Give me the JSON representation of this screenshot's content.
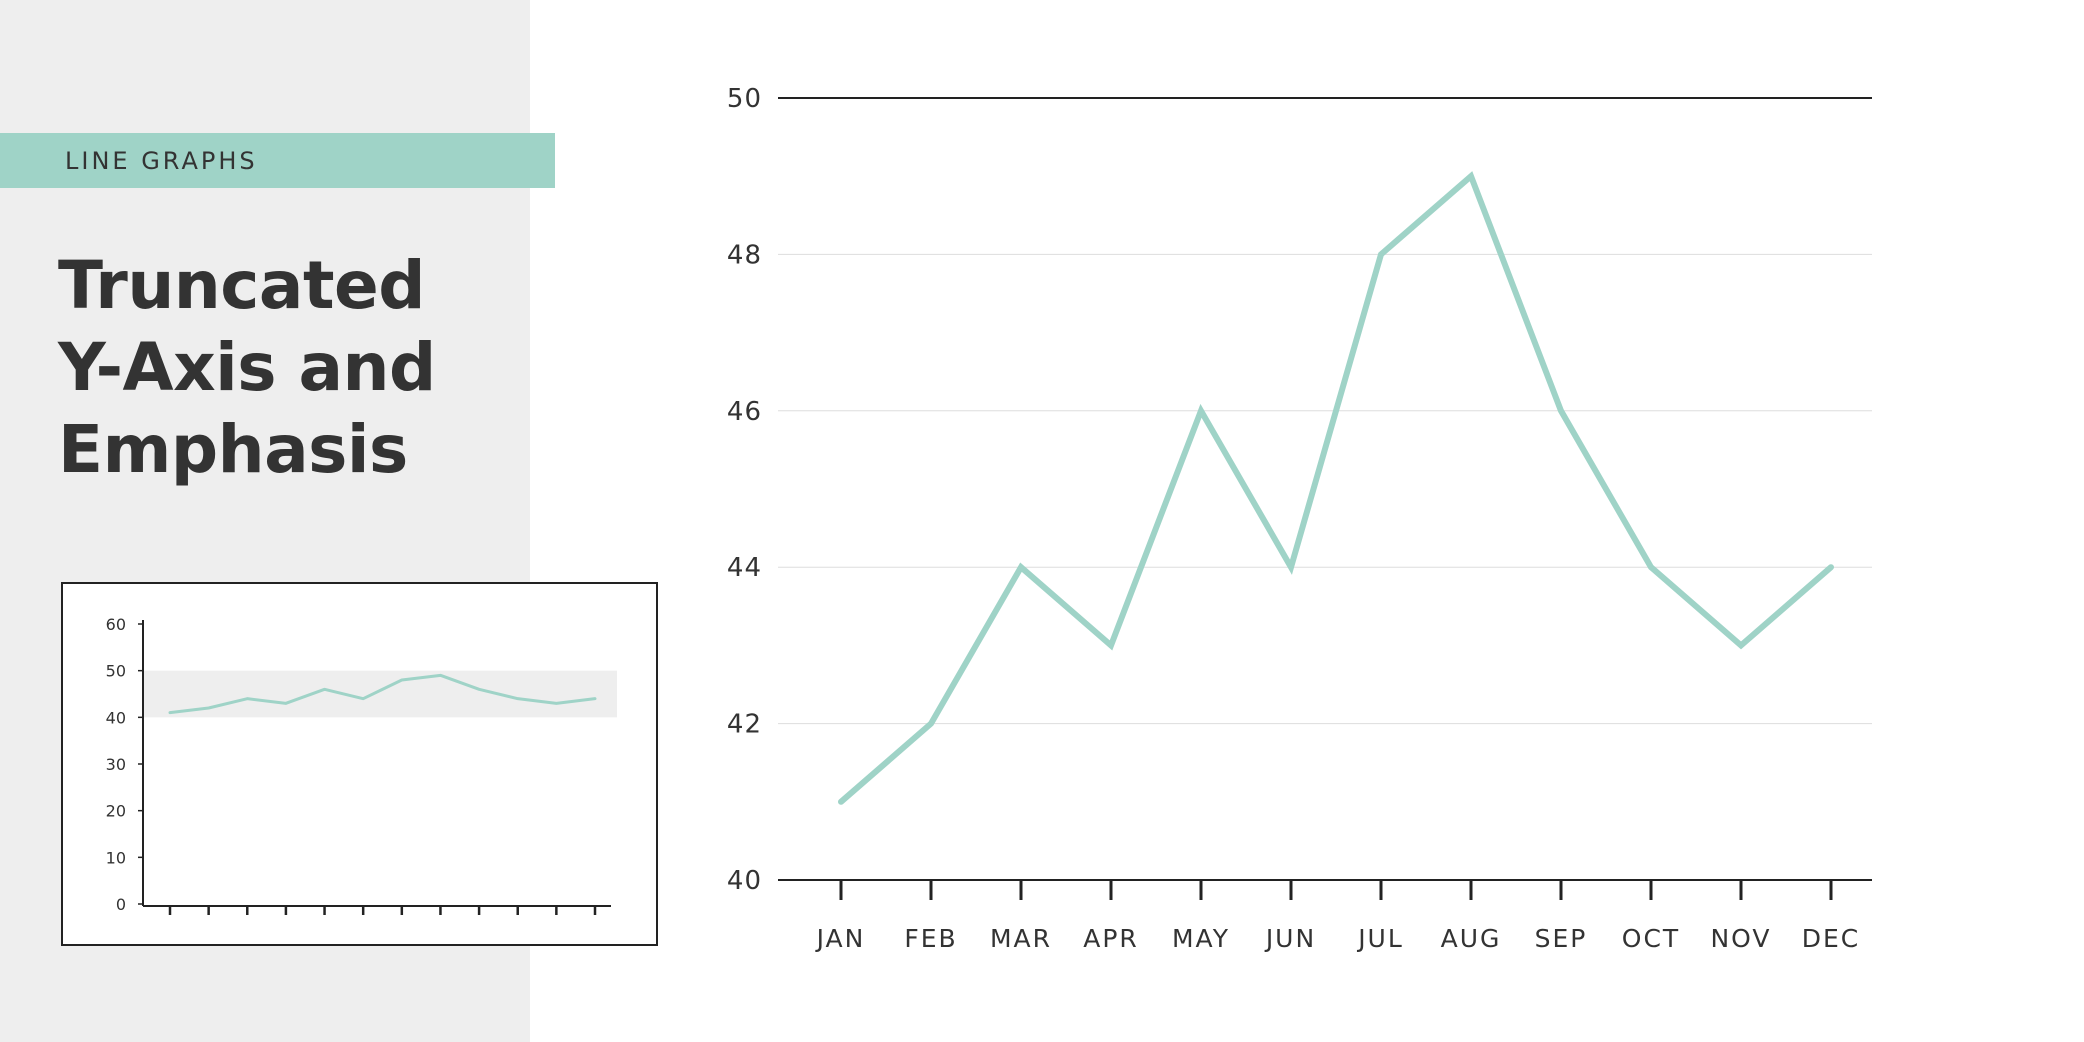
{
  "sidebar": {
    "tag": "LINE GRAPHS",
    "title_lines": [
      "Truncated",
      "Y-Axis and",
      "Emphasis"
    ]
  },
  "colors": {
    "line": "#9fd3c7",
    "band": "#9fd3c7",
    "panel": "#eeeeee",
    "text": "#333333",
    "highlight": "#eeeeee"
  },
  "chart_data": [
    {
      "type": "line",
      "categories": [
        "JAN",
        "FEB",
        "MAR",
        "APR",
        "MAY",
        "JUN",
        "JUL",
        "AUG",
        "SEP",
        "OCT",
        "NOV",
        "DEC"
      ],
      "values": [
        41,
        42,
        44,
        43,
        46,
        44,
        48,
        49,
        46,
        44,
        43,
        44
      ],
      "title": "",
      "xlabel": "",
      "ylabel": "",
      "ylim": [
        40,
        50
      ],
      "yticks": [
        "40",
        "42",
        "44",
        "46",
        "48",
        "50"
      ],
      "grid": "horizontal"
    },
    {
      "type": "line",
      "values": [
        41,
        42,
        44,
        43,
        46,
        44,
        48,
        49,
        46,
        44,
        43,
        44
      ],
      "title": "",
      "xlabel": "",
      "ylabel": "",
      "ylim": [
        0,
        60
      ],
      "yticks": [
        "0",
        "10",
        "20",
        "30",
        "40",
        "50",
        "60"
      ],
      "highlight_range": [
        40,
        50
      ],
      "grid": "off"
    }
  ]
}
